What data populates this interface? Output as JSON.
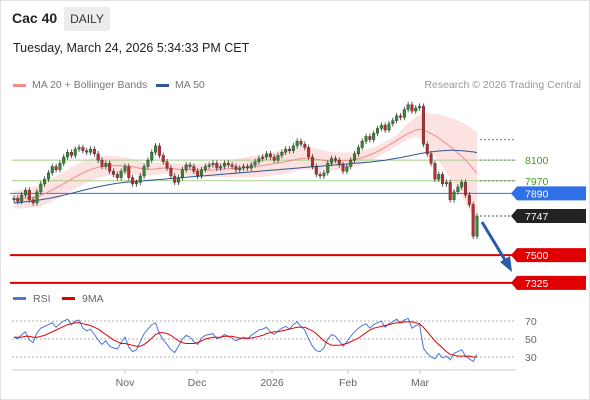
{
  "header": {
    "symbol": "Cac 40",
    "period": "DAILY"
  },
  "timestamp": "Tuesday, March 24, 2026 5:34:33 PM CET",
  "legend": {
    "items": [
      {
        "label": "MA 20 + Bollinger Bands",
        "color": "#f28b82"
      },
      {
        "label": "MA 50",
        "color": "#2f5597"
      }
    ],
    "credit": "Research © 2026 Trading Central"
  },
  "rsi_legend": {
    "items": [
      {
        "label": "RSI",
        "color": "#4a78d6"
      },
      {
        "label": "9MA",
        "color": "#e00000"
      }
    ]
  },
  "price_levels": [
    {
      "value": 8100,
      "label": "8100",
      "style": "text",
      "color": "#4a9a1e"
    },
    {
      "value": 7970,
      "label": "7970",
      "style": "text",
      "color": "#4a9a1e"
    },
    {
      "value": 7890,
      "label": "7890",
      "style": "box",
      "color": "#2f6fe8"
    },
    {
      "value": 7747,
      "label": "7747",
      "style": "box",
      "color": "#222222"
    },
    {
      "value": 7500,
      "label": "7500",
      "style": "box",
      "color": "#e00000"
    },
    {
      "value": 7325,
      "label": "7325",
      "style": "box",
      "color": "#e00000"
    }
  ],
  "x_axis_labels": [
    "Nov",
    "Dec",
    "2026",
    "Feb",
    "Mar"
  ],
  "rsi_levels": [
    "70",
    "50",
    "30"
  ],
  "chart_data": {
    "type": "candlestick",
    "y_range": [
      7280,
      8480
    ],
    "current_price": 7747,
    "closes": [
      7860,
      7840,
      7880,
      7910,
      7850,
      7830,
      7900,
      7950,
      7980,
      8020,
      8060,
      8040,
      8080,
      8120,
      8150,
      8130,
      8170,
      8180,
      8160,
      8150,
      8170,
      8140,
      8100,
      8060,
      8080,
      8030,
      8010,
      7990,
      8030,
      8060,
      7990,
      7950,
      7960,
      8000,
      8060,
      8100,
      8150,
      8190,
      8130,
      8090,
      8050,
      8000,
      7960,
      7990,
      8040,
      8070,
      8060,
      8030,
      8000,
      8040,
      8060,
      8070,
      8080,
      8050,
      8060,
      8080,
      8070,
      8060,
      8040,
      8050,
      8060,
      8050,
      8070,
      8090,
      8110,
      8120,
      8140,
      8120,
      8100,
      8130,
      8150,
      8170,
      8160,
      8190,
      8220,
      8200,
      8180,
      8120,
      8060,
      8010,
      8000,
      8020,
      8080,
      8110,
      8100,
      8070,
      8030,
      8060,
      8100,
      8140,
      8180,
      8220,
      8250,
      8230,
      8270,
      8300,
      8320,
      8290,
      8330,
      8350,
      8380,
      8370,
      8420,
      8450,
      8410,
      8430,
      8440,
      8200,
      8140,
      8080,
      7980,
      8010,
      7950,
      7960,
      7850,
      7900,
      7930,
      7960,
      7880,
      7820,
      7620,
      7747
    ],
    "ma20": [
      7850,
      7852,
      7855,
      7860,
      7862,
      7865,
      7870,
      7878,
      7888,
      7900,
      7912,
      7925,
      7938,
      7952,
      7966,
      7980,
      7994,
      8007,
      8020,
      8030,
      8040,
      8048,
      8055,
      8060,
      8063,
      8065,
      8066,
      8066,
      8065,
      8064,
      8062,
      8058,
      8053,
      8048,
      8045,
      8043,
      8043,
      8045,
      8048,
      8050,
      8050,
      8048,
      8045,
      8042,
      8040,
      8040,
      8040,
      8040,
      8039,
      8038,
      8037,
      8037,
      8038,
      8040,
      8042,
      8044,
      8046,
      8048,
      8050,
      8052,
      8054,
      8056,
      8058,
      8060,
      8063,
      8066,
      8070,
      8074,
      8078,
      8082,
      8086,
      8091,
      8096,
      8101,
      8106,
      8110,
      8112,
      8112,
      8110,
      8106,
      8102,
      8098,
      8095,
      8094,
      8094,
      8095,
      8096,
      8098,
      8101,
      8105,
      8110,
      8116,
      8124,
      8133,
      8143,
      8155,
      8168,
      8182,
      8196,
      8210,
      8225,
      8240,
      8255,
      8268,
      8280,
      8290,
      8295,
      8290,
      8280,
      8268,
      8255,
      8240,
      8222,
      8205,
      8185,
      8165,
      8145,
      8125,
      8100,
      8075,
      8045,
      8015
    ],
    "ma50": [
      7830,
      7832,
      7834,
      7837,
      7840,
      7843,
      7846,
      7850,
      7854,
      7858,
      7863,
      7868,
      7873,
      7879,
      7885,
      7891,
      7897,
      7903,
      7909,
      7915,
      7921,
      7927,
      7932,
      7937,
      7942,
      7946,
      7950,
      7954,
      7957,
      7960,
      7962,
      7964,
      7966,
      7968,
      7970,
      7972,
      7974,
      7976,
      7978,
      7980,
      7982,
      7984,
      7986,
      7988,
      7990,
      7992,
      7994,
      7996,
      7998,
      8000,
      8002,
      8004,
      8006,
      8008,
      8010,
      8012,
      8014,
      8016,
      8018,
      8020,
      8022,
      8024,
      8026,
      8028,
      8030,
      8032,
      8034,
      8036,
      8038,
      8040,
      8042,
      8044,
      8046,
      8048,
      8050,
      8052,
      8054,
      8056,
      8058,
      8060,
      8062,
      8064,
      8066,
      8068,
      8070,
      8072,
      8074,
      8076,
      8078,
      8080,
      8082,
      8084,
      8086,
      8088,
      8091,
      8094,
      8097,
      8100,
      8104,
      8108,
      8112,
      8116,
      8121,
      8126,
      8131,
      8136,
      8141,
      8145,
      8149,
      8152,
      8155,
      8158,
      8160,
      8161,
      8162,
      8162,
      8161,
      8160,
      8158,
      8155,
      8152,
      8148
    ],
    "rsi": [
      52,
      50,
      55,
      58,
      49,
      46,
      57,
      62,
      64,
      66,
      68,
      63,
      67,
      70,
      72,
      66,
      70,
      71,
      62,
      59,
      61,
      55,
      49,
      44,
      48,
      42,
      40,
      39,
      46,
      52,
      41,
      36,
      38,
      47,
      56,
      61,
      66,
      68,
      56,
      49,
      44,
      38,
      35,
      42,
      50,
      54,
      52,
      47,
      44,
      51,
      54,
      55,
      56,
      50,
      52,
      55,
      53,
      51,
      48,
      50,
      52,
      50,
      54,
      57,
      60,
      61,
      63,
      58,
      55,
      59,
      62,
      64,
      61,
      66,
      69,
      64,
      60,
      50,
      42,
      37,
      36,
      40,
      50,
      55,
      53,
      48,
      42,
      47,
      53,
      58,
      62,
      65,
      67,
      62,
      66,
      68,
      70,
      63,
      67,
      69,
      72,
      68,
      71,
      73,
      62,
      65,
      66,
      40,
      34,
      30,
      28,
      34,
      29,
      31,
      27,
      34,
      36,
      38,
      31,
      28,
      25,
      33
    ],
    "rsi_ma": [
      52,
      52,
      52,
      53,
      53,
      52,
      52,
      53,
      54,
      56,
      58,
      60,
      62,
      64,
      66,
      67,
      68,
      68,
      67,
      66,
      65,
      63,
      61,
      58,
      55,
      52,
      49,
      47,
      45,
      45,
      44,
      43,
      42,
      42,
      44,
      47,
      51,
      55,
      57,
      57,
      56,
      54,
      51,
      48,
      46,
      45,
      45,
      45,
      46,
      48,
      50,
      51,
      52,
      52,
      52,
      53,
      53,
      53,
      52,
      51,
      51,
      51,
      51,
      52,
      53,
      54,
      56,
      57,
      58,
      58,
      59,
      60,
      61,
      62,
      63,
      63,
      63,
      61,
      59,
      56,
      52,
      48,
      45,
      43,
      43,
      43,
      44,
      45,
      47,
      49,
      51,
      54,
      57,
      60,
      62,
      63,
      64,
      65,
      66,
      67,
      68,
      68,
      69,
      69,
      69,
      68,
      67,
      63,
      58,
      53,
      48,
      44,
      40,
      36,
      33,
      32,
      31,
      31,
      31,
      31,
      30,
      30
    ]
  }
}
